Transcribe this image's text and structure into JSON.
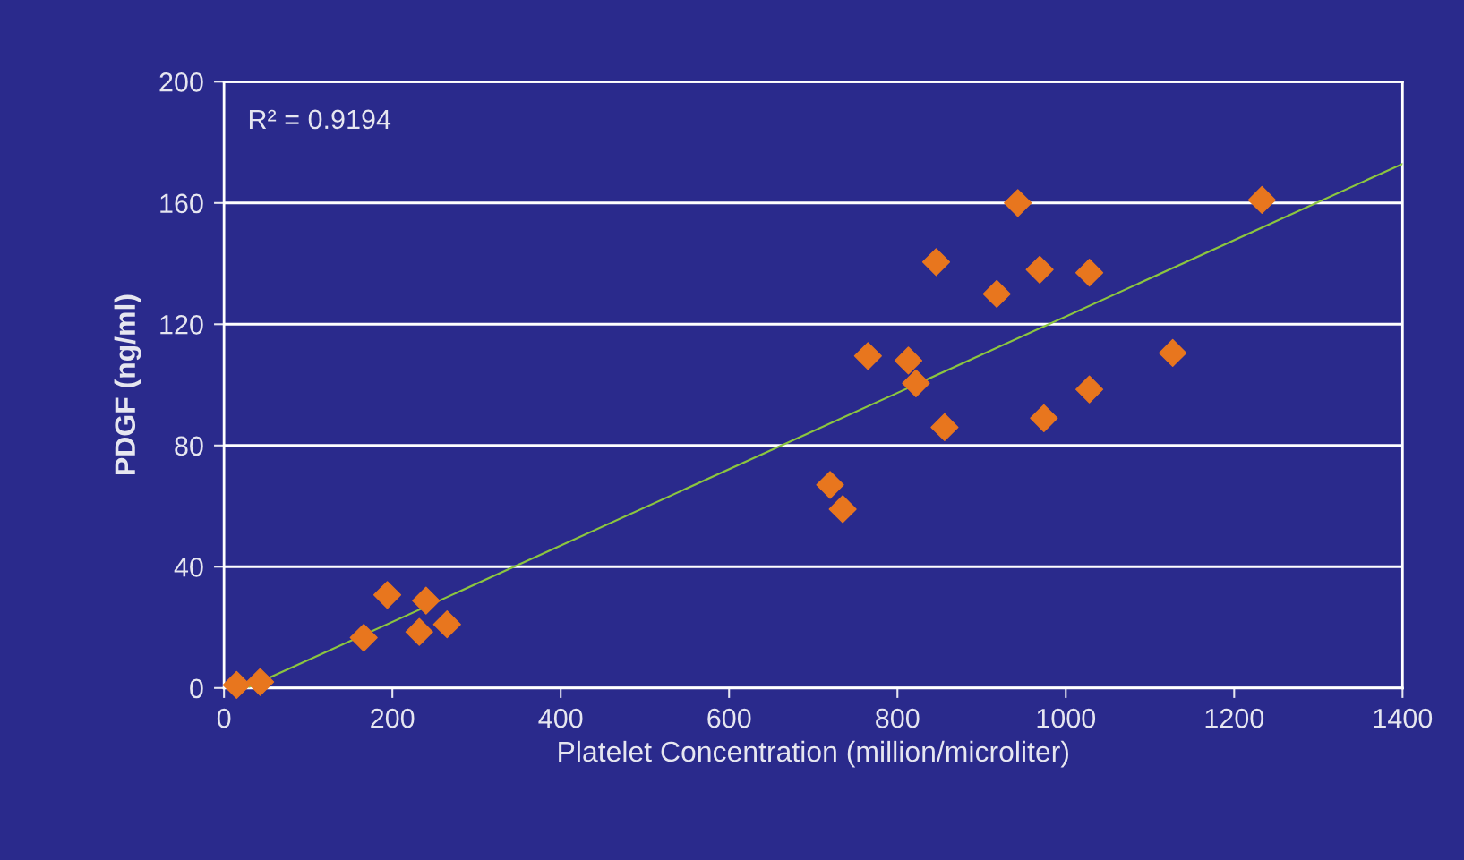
{
  "chart_data": {
    "type": "scatter",
    "xlabel": "Platelet Concentration (million/microliter)",
    "ylabel": "PDGF (ng/ml)",
    "annotations": [
      "R² = 0.9194"
    ],
    "series": [
      {
        "color": "#e8761e",
        "marker": "diamond",
        "x": [
          943,
          1233,
          846,
          969,
          1028,
          918,
          765,
          813,
          1127,
          822,
          1028,
          974,
          856,
          720,
          735,
          194,
          240,
          265,
          232,
          166,
          43,
          15
        ],
        "values": [
          160,
          161,
          140.5,
          138,
          137,
          130,
          109.5,
          108,
          110.5,
          100.5,
          98.5,
          89,
          86,
          67,
          59,
          30.7,
          28.8,
          21,
          18.5,
          16.6,
          2,
          1
        ]
      },
      {
        "type": "line",
        "color": "#8cc63f",
        "marker": "none",
        "x": [
          30,
          1400
        ],
        "values": [
          0.4,
          172.9
        ]
      }
    ],
    "xlim": [
      0,
      1400
    ],
    "xticks": [
      0,
      200,
      400,
      600,
      800,
      1000,
      1200,
      1400
    ],
    "ylim": [
      0,
      200
    ],
    "yticks": [
      0,
      40,
      80,
      120,
      160,
      200
    ],
    "grid": "y",
    "legend": false
  }
}
